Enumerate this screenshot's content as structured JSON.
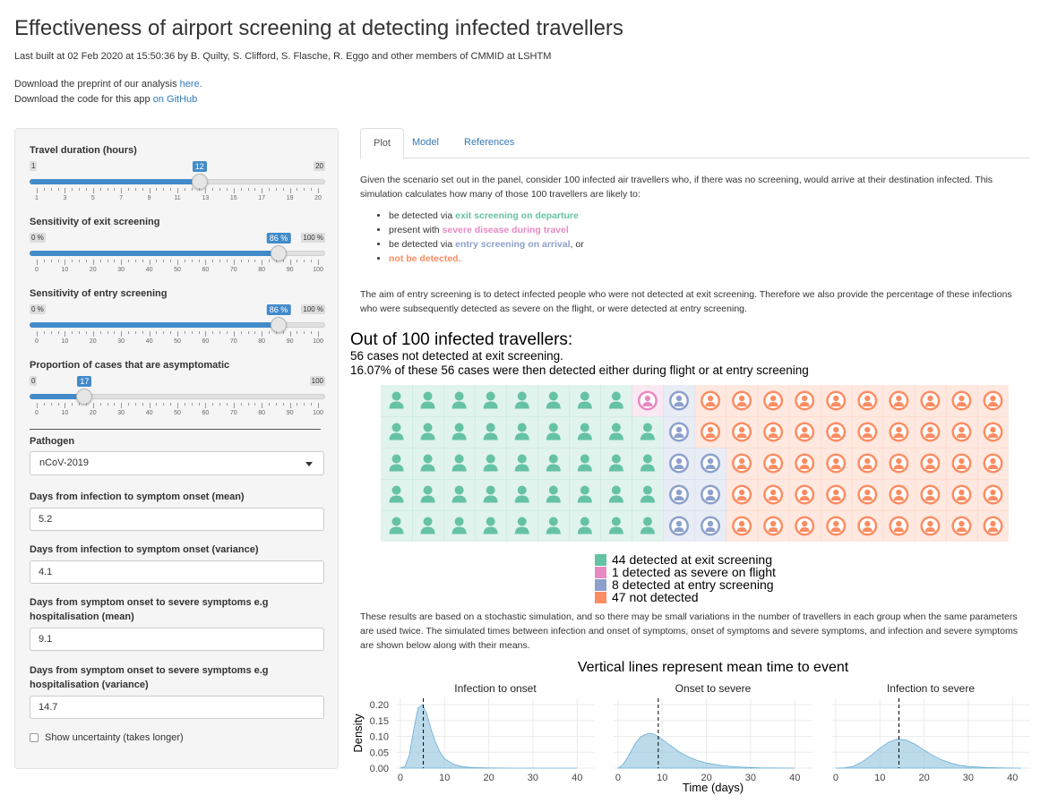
{
  "header": {
    "title": "Effectiveness of airport screening at detecting infected travellers",
    "subtitle": "Last built at 02 Feb 2020 at 15:50:36 by B. Quilty, S. Clifford, S. Flasche, R. Eggo and other members of CMMID at LSHTM",
    "preprint_text": "Download the preprint of our analysis ",
    "preprint_link": "here.",
    "code_text": "Download the code for this app ",
    "code_link": "on GitHub"
  },
  "sidebar": {
    "travel": {
      "label": "Travel duration (hours)",
      "min": 1,
      "max": 20,
      "value": 12,
      "min_label": "1",
      "max_label": "20",
      "value_label": "12",
      "ticks": [
        "1",
        "3",
        "5",
        "7",
        "9",
        "11",
        "13",
        "15",
        "17",
        "19",
        "20"
      ]
    },
    "exit": {
      "label": "Sensitivity of exit screening",
      "min": 0,
      "max": 100,
      "value": 86,
      "min_label": "0 %",
      "max_label": "100 %",
      "value_label": "86 %",
      "ticks": [
        "0",
        "10",
        "20",
        "30",
        "40",
        "50",
        "60",
        "70",
        "80",
        "90",
        "100"
      ]
    },
    "entry": {
      "label": "Sensitivity of entry screening",
      "min": 0,
      "max": 100,
      "value": 86,
      "min_label": "0 %",
      "max_label": "100 %",
      "value_label": "86 %",
      "ticks": [
        "0",
        "10",
        "20",
        "30",
        "40",
        "50",
        "60",
        "70",
        "80",
        "90",
        "100"
      ]
    },
    "asymp": {
      "label": "Proportion of cases that are asymptomatic",
      "min": 0,
      "max": 100,
      "value": 17,
      "min_label": "0",
      "max_label": "100",
      "value_label": "17",
      "ticks": [
        "0",
        "10",
        "20",
        "30",
        "40",
        "50",
        "60",
        "70",
        "80",
        "90",
        "100"
      ]
    },
    "pathogen_label": "Pathogen",
    "pathogen_value": "nCoV-2019",
    "inc_mean_label": "Days from infection to symptom onset (mean)",
    "inc_mean_value": "5.2",
    "inc_var_label": "Days from infection to symptom onset (variance)",
    "inc_var_value": "4.1",
    "sev_mean_label": "Days from symptom onset to severe symptoms e.g hospitalisation (mean)",
    "sev_mean_value": "9.1",
    "sev_var_label": "Days from symptom onset to severe symptoms e.g hospitalisation (variance)",
    "sev_var_value": "14.7",
    "uncertainty_label": "Show uncertainty (takes longer)"
  },
  "tabs": [
    "Plot",
    "Model",
    "References"
  ],
  "main": {
    "intro": "Given the scenario set out in the panel, consider 100 infected air travellers who, if there was no screening, would arrive at their destination infected. This simulation calculates how many of those 100 travellers are likely to:",
    "b1_pre": "be detected via ",
    "b1_hl": "exit screening on departure",
    "b2_pre": "present with ",
    "b2_hl": "severe disease during travel",
    "b3_pre": "be detected via ",
    "b3_hl": "entry screening on arrival",
    "b3_post": ", or",
    "b4_hl": "not be detected.",
    "aim": "The aim of entry screening is to detect infected people who were not detected at exit screening. Therefore we also provide the percentage of these infections who were subsequently detected as severe on the flight, or were detected at entry screening.",
    "waffle_title": "Out of 100 infected travellers:",
    "waffle_line1": "56 cases not detected at exit screening.",
    "waffle_line2": "16.07% of these 56 cases were then detected either during flight or at entry screening",
    "results_note": "These results are based on a stochastic simulation, and so there may be small variations in the number of travellers in each group when the same parameters are used twice. The simulated times between infection and onset of symptoms, onset of symptoms and severe symptoms, and infection and severe symptoms are shown below along with their means."
  },
  "colors": {
    "exit": "#66c2a5",
    "severe": "#e78ac3",
    "entry": "#8da0cb",
    "not": "#fc8d62",
    "link": "#337ab7",
    "slider": "#428bca"
  },
  "chart_data": [
    {
      "type": "waffle",
      "title": "Out of 100 infected travellers:",
      "rows": 5,
      "cols": 20,
      "categories": [
        "44 detected at exit screening",
        "1 detected as severe on flight",
        "8 detected at entry screening",
        "47 not detected"
      ],
      "values": [
        44,
        1,
        8,
        47
      ]
    },
    {
      "type": "area",
      "title": "Vertical lines represent mean time to event",
      "xlabel": "Time (days)",
      "ylabel": "Density",
      "xlim": [
        -1,
        44
      ],
      "ylim": [
        0,
        0.22
      ],
      "xticks": [
        "0",
        "10",
        "20",
        "30",
        "40"
      ],
      "yticks": [
        "0.00",
        "0.05",
        "0.10",
        "0.15",
        "0.20"
      ],
      "panels": [
        {
          "name": "Infection to onset",
          "mean": 5.2,
          "x": [
            0,
            1,
            2,
            3,
            4,
            5,
            6,
            7,
            8,
            9,
            10,
            12,
            14,
            16,
            20,
            25,
            30,
            40
          ],
          "y": [
            0,
            0.005,
            0.04,
            0.12,
            0.19,
            0.2,
            0.17,
            0.12,
            0.08,
            0.05,
            0.03,
            0.012,
            0.005,
            0.002,
            0.0005,
            0,
            0,
            0
          ]
        },
        {
          "name": "Onset to severe",
          "mean": 9.1,
          "x": [
            0,
            1,
            2,
            3,
            4,
            5,
            6,
            7,
            8,
            9,
            10,
            12,
            14,
            16,
            18,
            20,
            24,
            28,
            32,
            40
          ],
          "y": [
            0,
            0.01,
            0.03,
            0.055,
            0.08,
            0.097,
            0.105,
            0.11,
            0.108,
            0.1,
            0.09,
            0.07,
            0.05,
            0.035,
            0.024,
            0.016,
            0.007,
            0.003,
            0.001,
            0
          ]
        },
        {
          "name": "Infection to severe",
          "mean": 14.3,
          "x": [
            0,
            2,
            4,
            6,
            8,
            10,
            12,
            14,
            16,
            18,
            20,
            22,
            24,
            26,
            28,
            30,
            34,
            38,
            42
          ],
          "y": [
            0,
            0.001,
            0.006,
            0.02,
            0.04,
            0.063,
            0.082,
            0.092,
            0.088,
            0.075,
            0.057,
            0.04,
            0.026,
            0.016,
            0.009,
            0.005,
            0.002,
            0.0005,
            0
          ]
        }
      ]
    }
  ]
}
